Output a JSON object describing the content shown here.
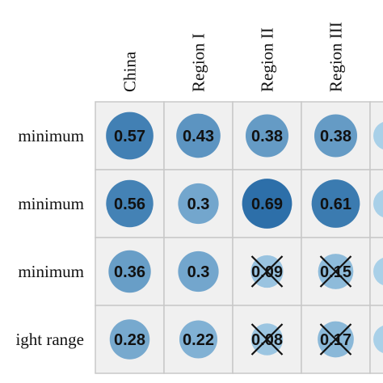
{
  "chart_data": {
    "type": "heatmap",
    "columns": [
      "China",
      "Region I",
      "Region II",
      "Region III"
    ],
    "rows": [
      "minimum",
      "minimum",
      "minimum",
      "ight range"
    ],
    "values": [
      [
        0.57,
        0.43,
        0.38,
        0.38
      ],
      [
        0.56,
        0.3,
        0.69,
        0.61
      ],
      [
        0.36,
        0.3,
        0.09,
        0.15
      ],
      [
        0.28,
        0.22,
        0.08,
        0.17
      ]
    ],
    "crossed": [
      [
        false,
        false,
        false,
        false
      ],
      [
        false,
        false,
        false,
        false
      ],
      [
        false,
        false,
        true,
        true
      ],
      [
        false,
        false,
        true,
        true
      ]
    ],
    "colors": {
      "low": "#a9d0e8",
      "high": "#2b6ea8",
      "cell_background": "#f0f0f0",
      "grid": "#c8c8c8"
    },
    "value_range": [
      0,
      0.7
    ]
  }
}
